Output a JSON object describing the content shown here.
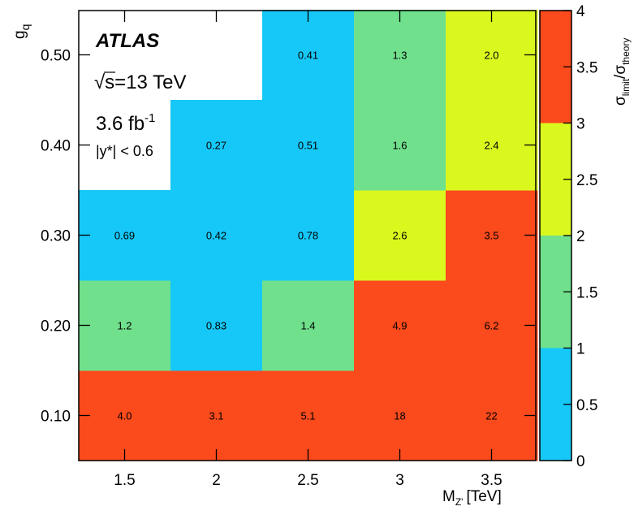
{
  "chart_data": {
    "type": "heatmap",
    "x": [
      1.5,
      2,
      2.5,
      3,
      3.5
    ],
    "y": [
      0.1,
      0.2,
      0.3,
      0.4,
      0.5
    ],
    "x_tick_labels": [
      "1.5",
      "2",
      "2.5",
      "3",
      "3.5"
    ],
    "y_tick_labels": [
      "0.10",
      "0.20",
      "0.30",
      "0.40",
      "0.50"
    ],
    "xlabel": "M_Z' [TeV]",
    "xlabel_main": "M",
    "xlabel_sub": "Z'",
    "xlabel_unit": "[TeV]",
    "ylabel_main": "g",
    "ylabel_sub": "q",
    "values": [
      {
        "x": 1.5,
        "y": 0.1,
        "value": 4.0,
        "label": "4.0"
      },
      {
        "x": 2,
        "y": 0.1,
        "value": 3.1,
        "label": "3.1"
      },
      {
        "x": 2.5,
        "y": 0.1,
        "value": 5.1,
        "label": "5.1"
      },
      {
        "x": 3,
        "y": 0.1,
        "value": 18,
        "label": "18"
      },
      {
        "x": 3.5,
        "y": 0.1,
        "value": 22,
        "label": "22"
      },
      {
        "x": 1.5,
        "y": 0.2,
        "value": 1.2,
        "label": "1.2"
      },
      {
        "x": 2,
        "y": 0.2,
        "value": 0.83,
        "label": "0.83"
      },
      {
        "x": 2.5,
        "y": 0.2,
        "value": 1.4,
        "label": "1.4"
      },
      {
        "x": 3,
        "y": 0.2,
        "value": 4.9,
        "label": "4.9"
      },
      {
        "x": 3.5,
        "y": 0.2,
        "value": 6.2,
        "label": "6.2"
      },
      {
        "x": 1.5,
        "y": 0.3,
        "value": 0.69,
        "label": "0.69"
      },
      {
        "x": 2,
        "y": 0.3,
        "value": 0.42,
        "label": "0.42"
      },
      {
        "x": 2.5,
        "y": 0.3,
        "value": 0.78,
        "label": "0.78"
      },
      {
        "x": 3,
        "y": 0.3,
        "value": 2.6,
        "label": "2.6"
      },
      {
        "x": 3.5,
        "y": 0.3,
        "value": 3.5,
        "label": "3.5"
      },
      {
        "x": 2,
        "y": 0.4,
        "value": 0.27,
        "label": "0.27"
      },
      {
        "x": 2.5,
        "y": 0.4,
        "value": 0.51,
        "label": "0.51"
      },
      {
        "x": 3,
        "y": 0.4,
        "value": 1.6,
        "label": "1.6"
      },
      {
        "x": 3.5,
        "y": 0.4,
        "value": 2.4,
        "label": "2.4"
      },
      {
        "x": 2.5,
        "y": 0.5,
        "value": 0.41,
        "label": "0.41"
      },
      {
        "x": 3,
        "y": 0.5,
        "value": 1.3,
        "label": "1.3"
      },
      {
        "x": 3.5,
        "y": 0.5,
        "value": 2.0,
        "label": "2.0"
      }
    ],
    "colorbar": {
      "label_main": "σ",
      "label_sub1": "limit",
      "label_sep": "/σ",
      "label_sub2": "theory",
      "range": [
        0,
        4
      ],
      "ticks": [
        "0",
        "0.5",
        "1",
        "1.5",
        "2",
        "2.5",
        "3",
        "3.5",
        "4"
      ],
      "bands": [
        {
          "from": 0,
          "to": 1,
          "color": "#16c8f8"
        },
        {
          "from": 1,
          "to": 2,
          "color": "#70e08c"
        },
        {
          "from": 2,
          "to": 3,
          "color": "#daf71e"
        },
        {
          "from": 3,
          "to": 4,
          "color": "#fb4a1c"
        }
      ]
    },
    "legend_placement": "top-left",
    "grid": false
  },
  "annotations": {
    "experiment": "ATLAS",
    "sqrt_symbol": "√",
    "energy": "s=13 TeV",
    "lumi_value": "3.6 fb",
    "lumi_exp": "-1",
    "rapidity_cut": "|y*| < 0.6"
  },
  "colors": {
    "background": "#ffffff",
    "frame": "#000000"
  }
}
